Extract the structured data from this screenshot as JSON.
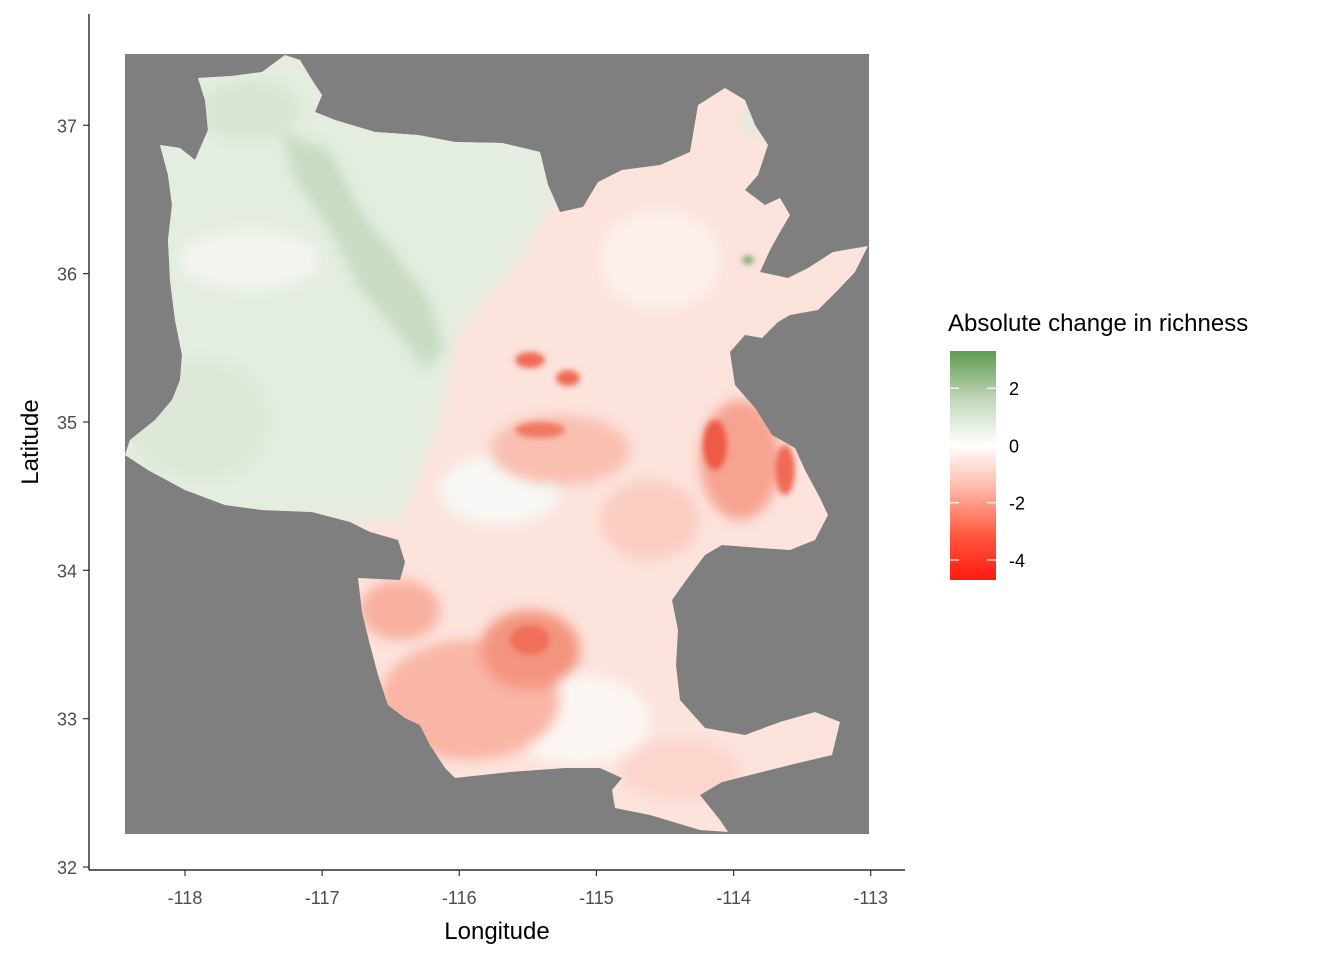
{
  "chart_data": {
    "type": "heatmap",
    "xlabel": "Longitude",
    "ylabel": "Latitude",
    "x_ticks": [
      -118,
      -117,
      -116,
      -115,
      -114,
      -113
    ],
    "x_tick_labels": [
      "-118",
      "-117",
      "-116",
      "-115",
      "-114",
      "-113"
    ],
    "y_ticks": [
      32,
      33,
      34,
      35,
      36,
      37
    ],
    "y_tick_labels": [
      "32",
      "33",
      "34",
      "35",
      "36",
      "37"
    ],
    "xlim": [
      -118.7,
      -112.75
    ],
    "ylim": [
      31.98,
      37.75
    ],
    "raster_extent": {
      "x": [
        -118.5,
        -112.98
      ],
      "y": [
        32.23,
        37.48
      ]
    },
    "background_color": "#7f7f7f",
    "legend": {
      "title": "Absolute change in richness",
      "range": [
        -4.7,
        3.3
      ],
      "ticks": [
        2,
        0,
        -2,
        -4
      ],
      "tick_labels": [
        "2",
        "0",
        "-2",
        "-4"
      ],
      "colors": {
        "low": "#ff1a0f",
        "mid": "#ffffff",
        "high": "#5e9a50"
      },
      "placement": "right"
    }
  }
}
